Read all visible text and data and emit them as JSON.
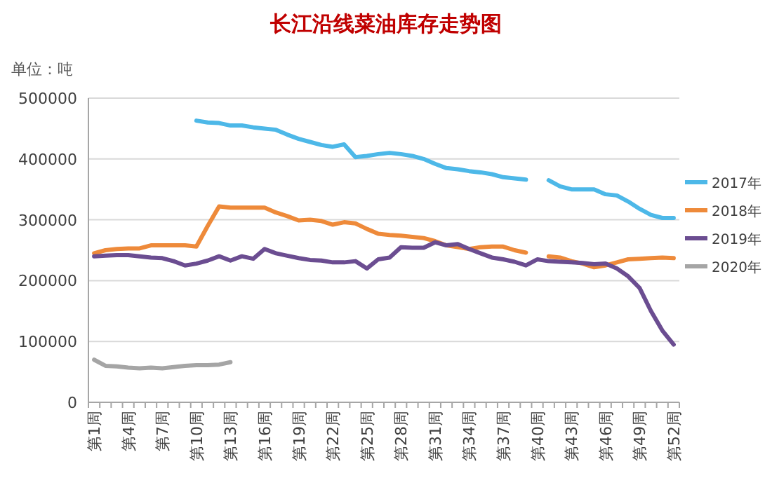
{
  "chart_data": {
    "type": "line",
    "title": "长江沿线菜油库存走势图",
    "annotations": [
      "单位：吨"
    ],
    "categories": [
      "第1周",
      null,
      null,
      "第4周",
      null,
      null,
      "第7周",
      null,
      null,
      "第10周",
      null,
      null,
      "第13周",
      null,
      null,
      "第16周",
      null,
      null,
      "第19周",
      null,
      null,
      "第22周",
      null,
      null,
      "第25周",
      null,
      null,
      "第28周",
      null,
      null,
      "第31周",
      null,
      null,
      "第34周",
      null,
      null,
      "第37周",
      null,
      null,
      "第40周",
      null,
      null,
      "第43周",
      null,
      null,
      "第46周",
      null,
      null,
      "第49周",
      null,
      null,
      "第52周"
    ],
    "series": [
      {
        "name": "2017年",
        "color": "#4db8e8",
        "values": [
          null,
          null,
          null,
          null,
          null,
          null,
          null,
          null,
          null,
          463000,
          460000,
          459000,
          455000,
          455000,
          452000,
          450000,
          448000,
          440000,
          433000,
          428000,
          423000,
          420000,
          424000,
          403000,
          405000,
          408000,
          410000,
          408000,
          405000,
          400000,
          392000,
          385000,
          383000,
          380000,
          378000,
          375000,
          370000,
          368000,
          366000,
          null,
          365000,
          355000,
          350000,
          350000,
          350000,
          342000,
          340000,
          330000,
          318000,
          308000,
          303000,
          303000
        ]
      },
      {
        "name": "2018年",
        "color": "#ee8a3a",
        "values": [
          245000,
          250000,
          252000,
          253000,
          253000,
          258000,
          258000,
          258000,
          258000,
          256000,
          290000,
          322000,
          320000,
          320000,
          320000,
          320000,
          312000,
          306000,
          299000,
          300000,
          298000,
          292000,
          296000,
          294000,
          285000,
          277000,
          275000,
          274000,
          272000,
          270000,
          265000,
          258000,
          255000,
          252000,
          255000,
          256000,
          256000,
          250000,
          246000,
          null,
          240000,
          238000,
          232000,
          228000,
          222000,
          225000,
          230000,
          235000,
          236000,
          237000,
          238000,
          237000
        ]
      },
      {
        "name": "2019年",
        "color": "#6b4d91",
        "values": [
          240000,
          241000,
          242000,
          242000,
          240000,
          238000,
          237000,
          232000,
          225000,
          228000,
          233000,
          240000,
          233000,
          240000,
          236000,
          252000,
          245000,
          241000,
          237000,
          234000,
          233000,
          230000,
          230000,
          232000,
          220000,
          235000,
          238000,
          255000,
          254000,
          254000,
          263000,
          258000,
          260000,
          252000,
          245000,
          238000,
          235000,
          231000,
          225000,
          235000,
          232000,
          231000,
          230000,
          229000,
          227000,
          228000,
          220000,
          207000,
          188000,
          150000,
          118000,
          95000
        ]
      },
      {
        "name": "2020年",
        "color": "#a5a5a5",
        "values": [
          70000,
          60000,
          59000,
          57000,
          56000,
          57000,
          56000,
          58000,
          60000,
          61000,
          61000,
          62000,
          66000,
          null,
          null,
          null,
          null,
          null,
          null,
          null,
          null,
          null,
          null,
          null,
          null,
          null,
          null,
          null,
          null,
          null,
          null,
          null,
          null,
          null,
          null,
          null,
          null,
          null,
          null,
          null,
          null,
          null,
          null,
          null,
          null,
          null,
          null,
          null,
          null,
          null,
          null,
          null
        ]
      }
    ],
    "ylim": [
      0,
      500000
    ],
    "yticks": [
      0,
      100000,
      200000,
      300000,
      400000,
      500000
    ],
    "grid": "y",
    "legend": "right",
    "marker": "none",
    "line_style": "solid"
  }
}
